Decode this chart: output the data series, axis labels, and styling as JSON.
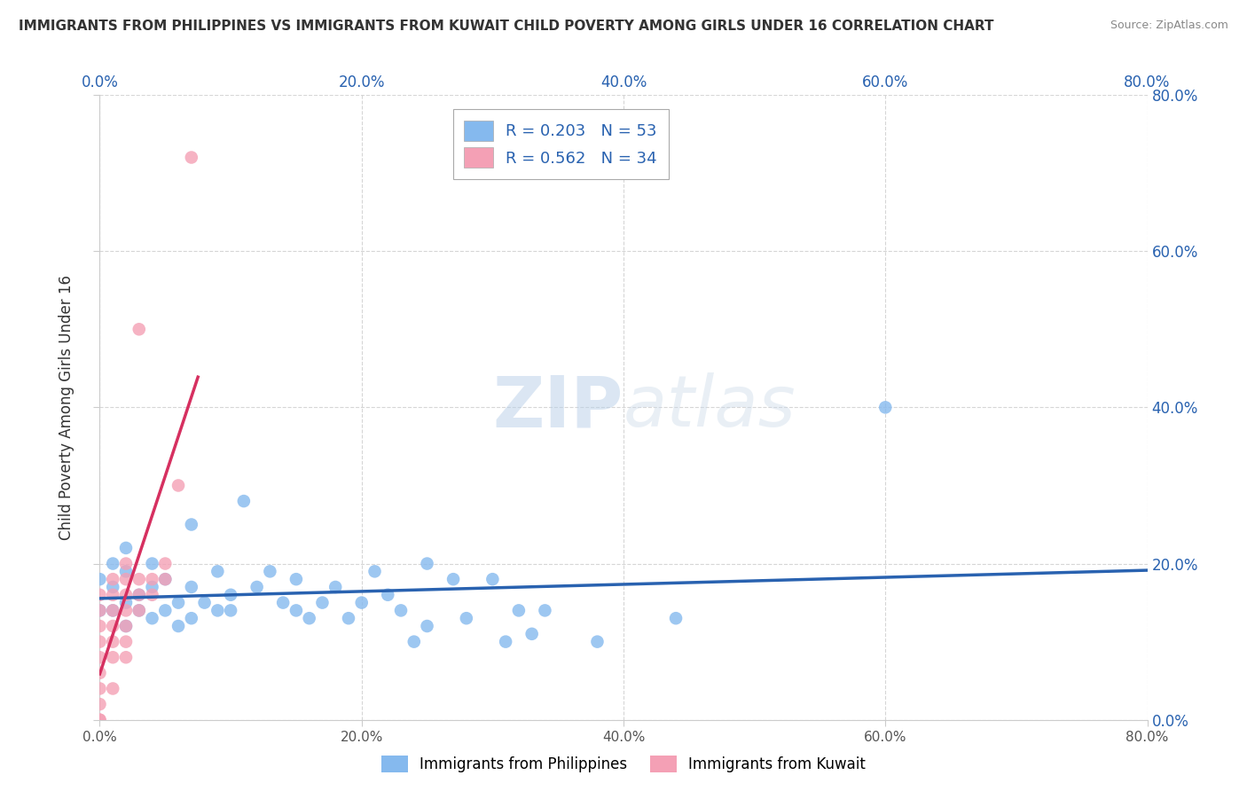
{
  "title": "IMMIGRANTS FROM PHILIPPINES VS IMMIGRANTS FROM KUWAIT CHILD POVERTY AMONG GIRLS UNDER 16 CORRELATION CHART",
  "source": "Source: ZipAtlas.com",
  "ylabel": "Child Poverty Among Girls Under 16",
  "xlim": [
    0,
    0.8
  ],
  "ylim": [
    0,
    0.8
  ],
  "xticks": [
    0.0,
    0.2,
    0.4,
    0.6,
    0.8
  ],
  "yticks": [
    0.0,
    0.2,
    0.4,
    0.6,
    0.8
  ],
  "xticklabels": [
    "0.0%",
    "20.0%",
    "40.0%",
    "60.0%",
    "80.0%"
  ],
  "yticklabels": [
    "0.0%",
    "20.0%",
    "40.0%",
    "60.0%",
    "80.0%"
  ],
  "philippines_color": "#85b9ee",
  "kuwait_color": "#f4a0b5",
  "philippines_line_color": "#2962b0",
  "kuwait_line_color": "#d63060",
  "legend_philippines_label": "R = 0.203   N = 53",
  "legend_kuwait_label": "R = 0.562   N = 34",
  "watermark_zip": "ZIP",
  "watermark_atlas": "atlas",
  "philippines_x": [
    0.0,
    0.0,
    0.01,
    0.01,
    0.01,
    0.02,
    0.02,
    0.02,
    0.02,
    0.03,
    0.03,
    0.04,
    0.04,
    0.04,
    0.05,
    0.05,
    0.06,
    0.06,
    0.07,
    0.07,
    0.07,
    0.08,
    0.09,
    0.09,
    0.1,
    0.1,
    0.11,
    0.12,
    0.13,
    0.14,
    0.15,
    0.15,
    0.16,
    0.17,
    0.18,
    0.19,
    0.2,
    0.21,
    0.22,
    0.23,
    0.24,
    0.25,
    0.25,
    0.27,
    0.28,
    0.3,
    0.31,
    0.32,
    0.33,
    0.34,
    0.38,
    0.44,
    0.6
  ],
  "philippines_y": [
    0.14,
    0.18,
    0.14,
    0.17,
    0.2,
    0.12,
    0.15,
    0.19,
    0.22,
    0.14,
    0.16,
    0.13,
    0.17,
    0.2,
    0.14,
    0.18,
    0.12,
    0.15,
    0.13,
    0.17,
    0.25,
    0.15,
    0.14,
    0.19,
    0.14,
    0.16,
    0.28,
    0.17,
    0.19,
    0.15,
    0.14,
    0.18,
    0.13,
    0.15,
    0.17,
    0.13,
    0.15,
    0.19,
    0.16,
    0.14,
    0.1,
    0.12,
    0.2,
    0.18,
    0.13,
    0.18,
    0.1,
    0.14,
    0.11,
    0.14,
    0.1,
    0.13,
    0.4
  ],
  "kuwait_x": [
    0.0,
    0.0,
    0.0,
    0.0,
    0.0,
    0.0,
    0.0,
    0.0,
    0.0,
    0.0,
    0.01,
    0.01,
    0.01,
    0.01,
    0.01,
    0.01,
    0.01,
    0.02,
    0.02,
    0.02,
    0.02,
    0.02,
    0.02,
    0.02,
    0.03,
    0.03,
    0.03,
    0.03,
    0.04,
    0.04,
    0.05,
    0.05,
    0.06,
    0.07
  ],
  "kuwait_y": [
    0.0,
    0.0,
    0.02,
    0.04,
    0.06,
    0.08,
    0.1,
    0.12,
    0.14,
    0.16,
    0.04,
    0.08,
    0.1,
    0.12,
    0.14,
    0.16,
    0.18,
    0.08,
    0.1,
    0.12,
    0.14,
    0.16,
    0.18,
    0.2,
    0.14,
    0.16,
    0.18,
    0.5,
    0.16,
    0.18,
    0.18,
    0.2,
    0.3,
    0.72
  ]
}
